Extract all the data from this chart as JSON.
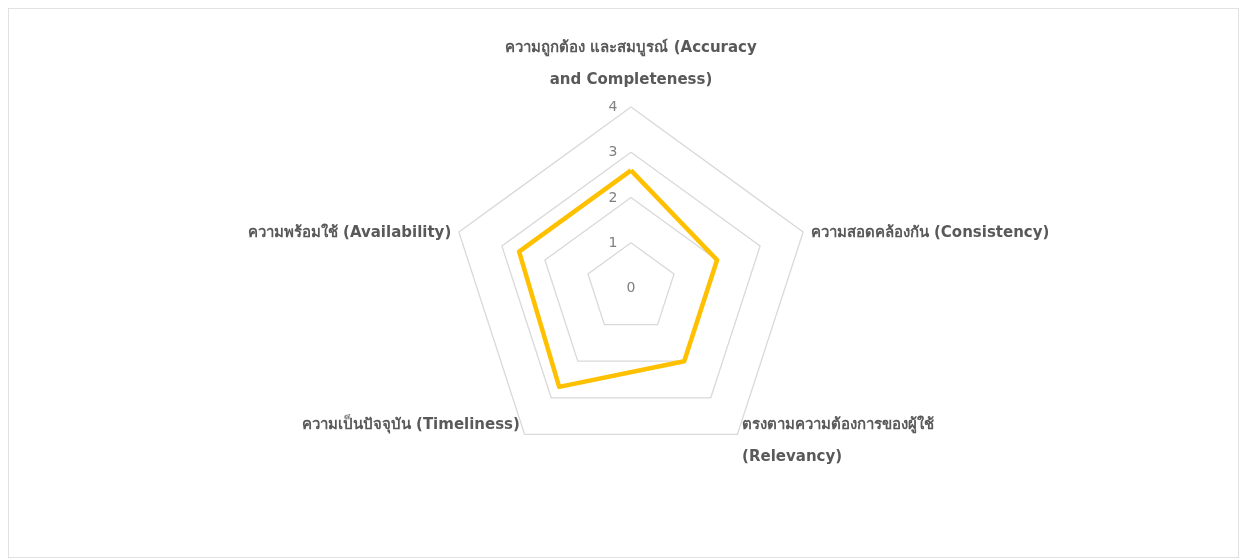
{
  "chart_data": {
    "type": "radar",
    "categories": [
      "ความถูกต้อง และสมบูรณ์ (Accuracy and Completeness)",
      "ความสอดคล้องกัน (Consistency)",
      "ตรงตามความต้องการของผู้ใช้ (Relevancy)",
      "ความเป็นปัจจุบัน (Timeliness)",
      "ความพร้อมใช้ (Availability)"
    ],
    "series": [
      {
        "color": "#ffc000",
        "values": [
          2.6,
          2.0,
          2.0,
          2.7,
          2.6
        ]
      }
    ],
    "ylim": [
      0,
      4
    ],
    "yticks": [
      0,
      1,
      2,
      3,
      4
    ],
    "grid": true,
    "line_style": "solid"
  }
}
